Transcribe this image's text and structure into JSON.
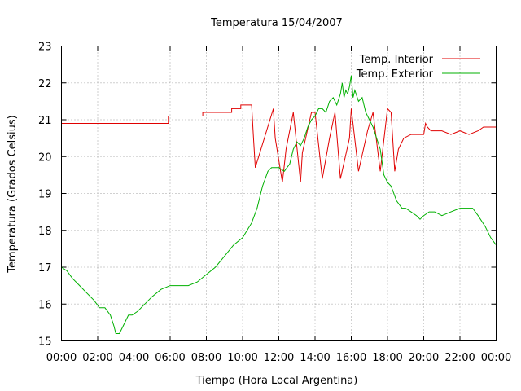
{
  "chart_data": {
    "type": "line",
    "title": "Temperatura 15/04/2007",
    "xlabel": "Tiempo (Hora Local Argentina)",
    "ylabel": "Temperatura (Grados Celsius)",
    "xlim": [
      0,
      24
    ],
    "ylim": [
      15,
      23
    ],
    "grid": true,
    "legend_position": "top-right",
    "x_tick_labels": [
      "00:00",
      "02:00",
      "04:00",
      "06:00",
      "08:00",
      "10:00",
      "12:00",
      "14:00",
      "16:00",
      "18:00",
      "20:00",
      "22:00",
      "00:00"
    ],
    "y_tick_labels": [
      "15",
      "16",
      "17",
      "18",
      "19",
      "20",
      "21",
      "22",
      "23"
    ],
    "series": [
      {
        "name": "Temp. Interior",
        "color": "#e00000",
        "x": [
          0,
          5.9,
          5.9,
          7.8,
          7.8,
          9.4,
          9.4,
          9.9,
          9.9,
          10.5,
          10.6,
          10.7,
          11.2,
          11.7,
          11.8,
          12.2,
          12.4,
          12.8,
          13.2,
          13.3,
          13.8,
          14.0,
          14.4,
          14.8,
          15.1,
          15.4,
          15.9,
          16.0,
          16.4,
          16.9,
          17.2,
          17.6,
          18.0,
          18.2,
          18.4,
          18.6,
          18.9,
          19.3,
          19.6,
          20.0,
          20.1,
          20.2,
          20.4,
          20.6,
          21.0,
          21.5,
          22.0,
          22.5,
          23.0,
          23.3,
          24.0
        ],
        "y": [
          20.9,
          20.9,
          21.1,
          21.1,
          21.2,
          21.2,
          21.3,
          21.3,
          21.4,
          21.4,
          20.5,
          19.7,
          20.5,
          21.3,
          20.5,
          19.3,
          20.2,
          21.2,
          19.3,
          20.1,
          21.2,
          21.2,
          19.4,
          20.5,
          21.2,
          19.4,
          20.5,
          21.3,
          19.6,
          20.7,
          21.2,
          19.6,
          21.3,
          21.2,
          19.6,
          20.2,
          20.5,
          20.6,
          20.6,
          20.6,
          20.9,
          20.8,
          20.7,
          20.7,
          20.7,
          20.6,
          20.7,
          20.6,
          20.7,
          20.8,
          20.8
        ]
      },
      {
        "name": "Temp. Exterior",
        "color": "#00b000",
        "x": [
          0,
          0.3,
          0.6,
          1.0,
          1.4,
          1.8,
          2.1,
          2.4,
          2.7,
          2.9,
          3.0,
          3.2,
          3.5,
          3.7,
          3.9,
          4.2,
          4.6,
          5.0,
          5.5,
          6.0,
          6.5,
          7.0,
          7.5,
          8.0,
          8.5,
          9.0,
          9.5,
          10.0,
          10.5,
          10.8,
          11.1,
          11.4,
          11.6,
          11.8,
          12.0,
          12.3,
          12.6,
          12.8,
          13.0,
          13.2,
          13.4,
          13.6,
          13.8,
          14.0,
          14.2,
          14.4,
          14.6,
          14.8,
          15.0,
          15.2,
          15.4,
          15.5,
          15.6,
          15.7,
          15.8,
          15.9,
          16.0,
          16.1,
          16.2,
          16.4,
          16.6,
          16.8,
          17.0,
          17.2,
          17.4,
          17.6,
          17.8,
          18.0,
          18.2,
          18.5,
          18.8,
          19.0,
          19.3,
          19.6,
          19.8,
          20.0,
          20.3,
          20.6,
          21.0,
          21.5,
          22.0,
          22.5,
          22.7,
          23.0,
          23.4,
          23.7,
          24.0
        ],
        "y": [
          17.0,
          16.9,
          16.7,
          16.5,
          16.3,
          16.1,
          15.9,
          15.9,
          15.7,
          15.4,
          15.2,
          15.2,
          15.5,
          15.7,
          15.7,
          15.8,
          16.0,
          16.2,
          16.4,
          16.5,
          16.5,
          16.5,
          16.6,
          16.8,
          17.0,
          17.3,
          17.6,
          17.8,
          18.2,
          18.6,
          19.2,
          19.6,
          19.7,
          19.7,
          19.7,
          19.6,
          19.8,
          20.2,
          20.4,
          20.3,
          20.5,
          20.8,
          21.0,
          21.1,
          21.3,
          21.3,
          21.2,
          21.5,
          21.6,
          21.4,
          21.7,
          22.0,
          21.6,
          21.8,
          21.7,
          21.9,
          22.2,
          21.6,
          21.8,
          21.5,
          21.6,
          21.2,
          21.0,
          20.8,
          20.5,
          20.2,
          19.5,
          19.3,
          19.2,
          18.8,
          18.6,
          18.6,
          18.5,
          18.4,
          18.3,
          18.4,
          18.5,
          18.5,
          18.4,
          18.5,
          18.6,
          18.6,
          18.6,
          18.4,
          18.1,
          17.8,
          17.6
        ]
      }
    ]
  }
}
